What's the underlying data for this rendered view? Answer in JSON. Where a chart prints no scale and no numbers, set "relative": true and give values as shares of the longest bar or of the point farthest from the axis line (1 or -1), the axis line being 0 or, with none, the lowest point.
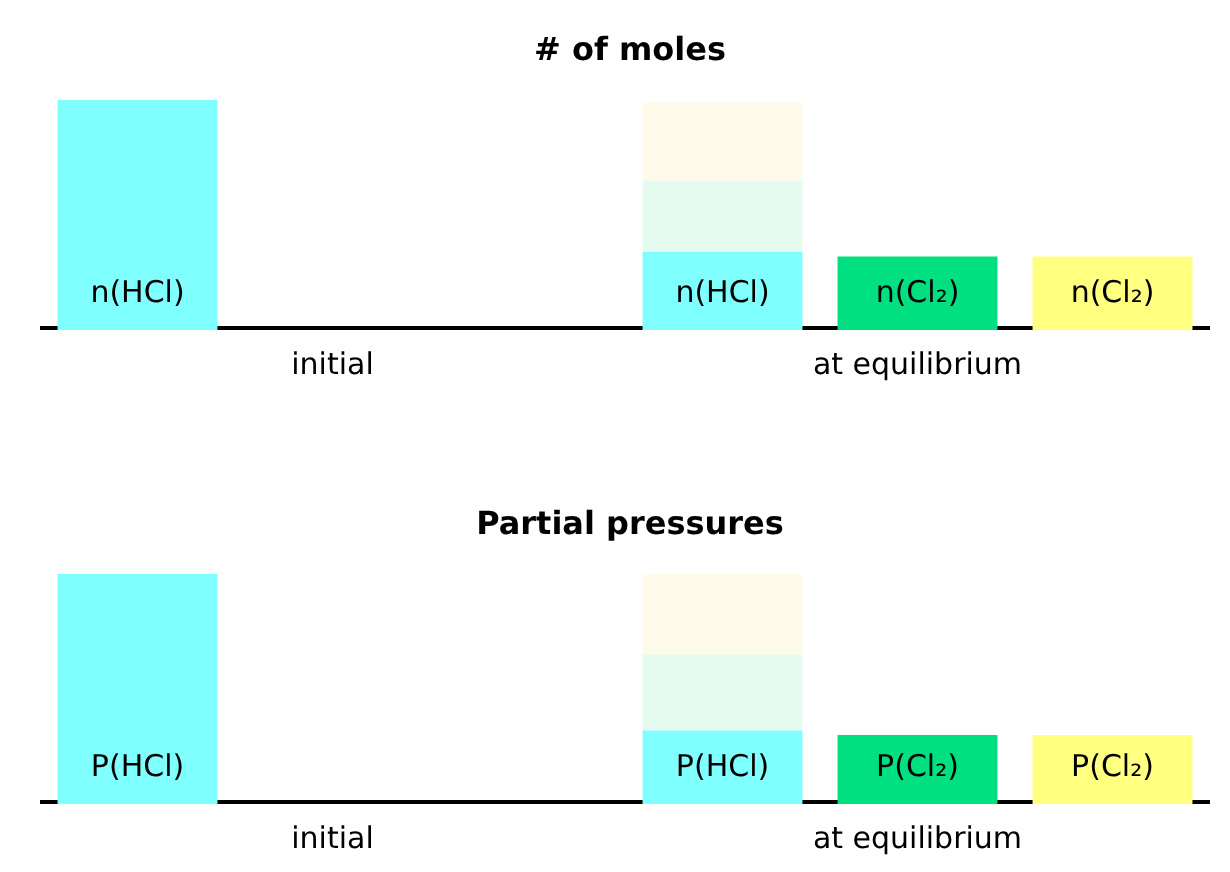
{
  "chart_data": [
    {
      "type": "bar",
      "title": "# of moles",
      "relative": true,
      "stacked": true,
      "annotations": [
        "initial",
        "at equilibrium"
      ],
      "categories": [
        "n(HCl)",
        null,
        null,
        "n(HCl)",
        "n(Cl₂)",
        "n(Cl₂)"
      ],
      "series": [
        {
          "values": [
            1,
            null,
            null,
            0.34,
            0.32,
            0.32
          ],
          "colors": [
            "#80ffff",
            "#80ffff",
            "#80ffff",
            "#80ffff",
            "#00e080",
            "#ffff80"
          ]
        },
        {
          "values": [
            null,
            null,
            null,
            0.31,
            null,
            null
          ],
          "color": "#e6fbf0"
        },
        {
          "values": [
            null,
            null,
            null,
            0.34,
            null,
            null
          ],
          "color": "#fefbea"
        }
      ]
    },
    {
      "type": "bar",
      "title": "Partial pressures",
      "relative": true,
      "stacked": true,
      "annotations": [
        "initial",
        "at equilibrium"
      ],
      "categories": [
        "P(HCl)",
        null,
        null,
        "P(HCl)",
        "P(Cl₂)",
        "P(Cl₂)"
      ],
      "series": [
        {
          "values": [
            1,
            null,
            null,
            0.32,
            0.3,
            0.3
          ],
          "colors": [
            "#80ffff",
            "#80ffff",
            "#80ffff",
            "#80ffff",
            "#00e080",
            "#ffff80"
          ]
        },
        {
          "values": [
            null,
            null,
            null,
            0.33,
            null,
            null
          ],
          "color": "#e6fbf0"
        },
        {
          "values": [
            null,
            null,
            null,
            0.35,
            null,
            null
          ],
          "color": "#fefbea"
        }
      ]
    }
  ]
}
